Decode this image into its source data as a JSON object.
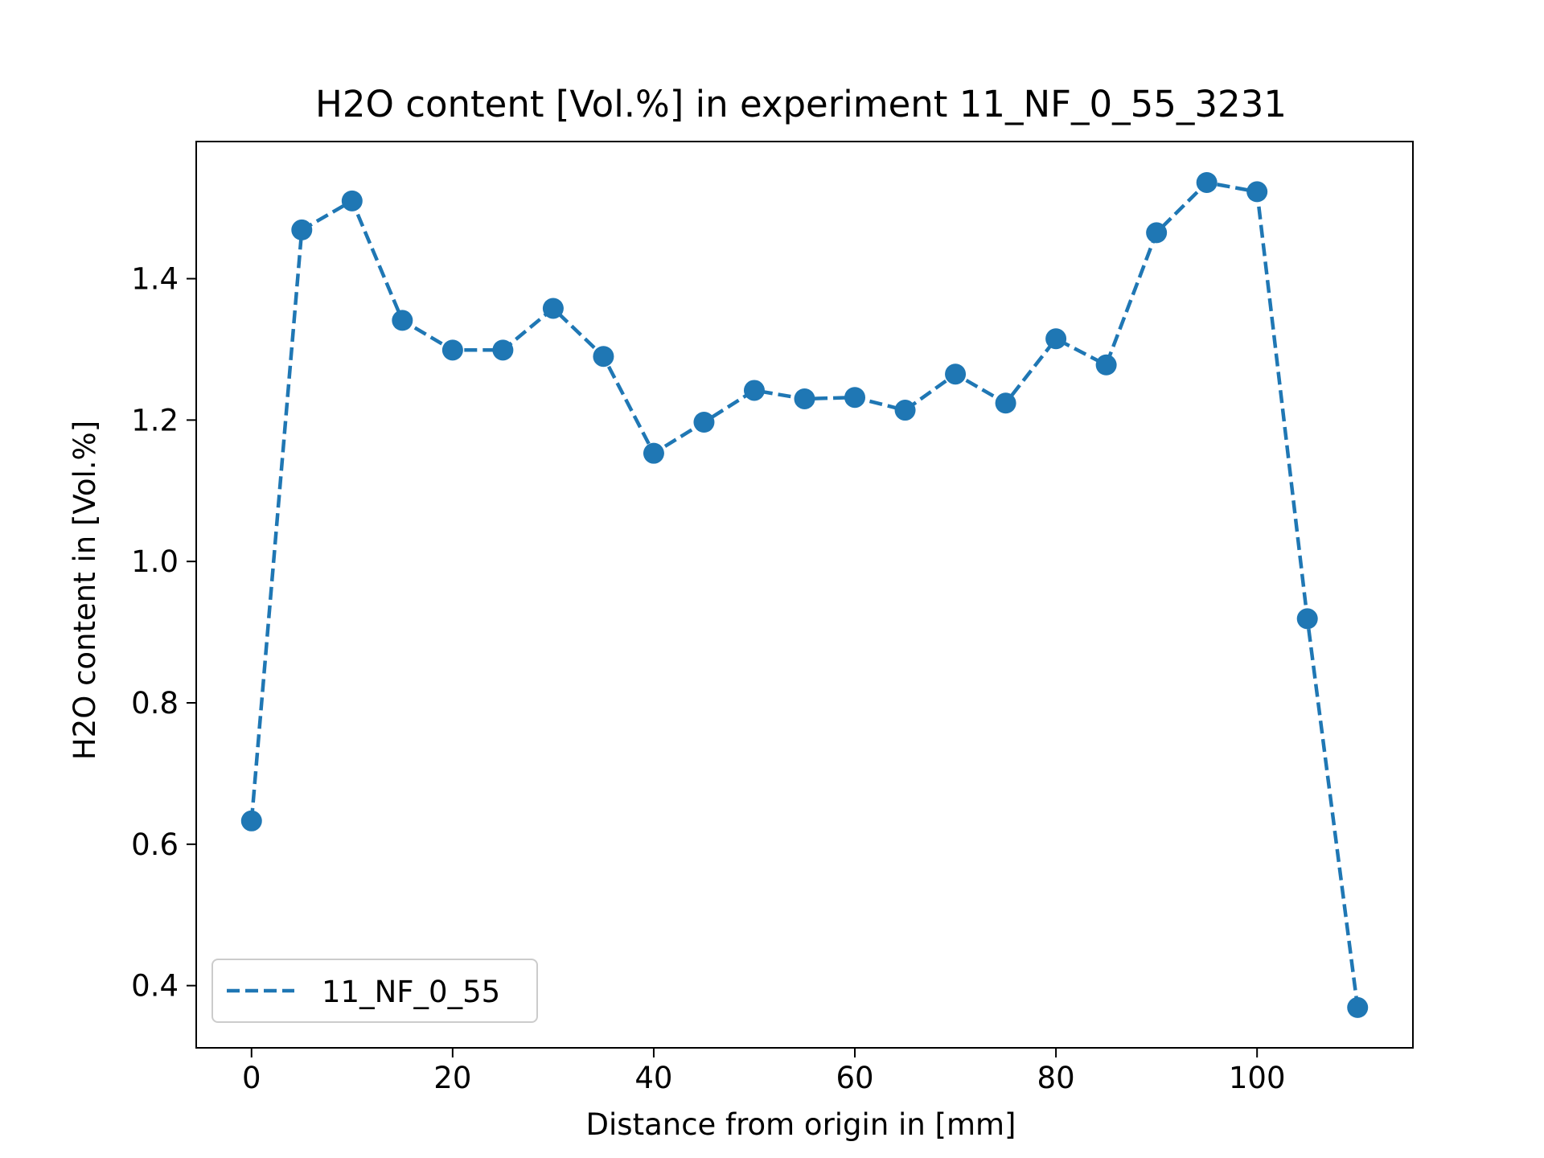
{
  "chart_data": {
    "type": "line",
    "title": "H2O content [Vol.%] in experiment 11_NF_0_55_3231",
    "xlabel": "Distance from origin in [mm]",
    "ylabel": "H2O content in [Vol.%]",
    "xlim": [
      -5.5,
      115.5
    ],
    "ylim": [
      0.312,
      1.594
    ],
    "xticks": [
      0,
      20,
      40,
      60,
      80,
      100
    ],
    "xtick_labels": [
      "0",
      "20",
      "40",
      "60",
      "80",
      "100"
    ],
    "yticks": [
      0.4,
      0.6,
      0.8,
      1.0,
      1.2,
      1.4
    ],
    "ytick_labels": [
      "0.4",
      "0.6",
      "0.8",
      "1.0",
      "1.2",
      "1.4"
    ],
    "grid": false,
    "legend_position": "lower-left",
    "series": [
      {
        "name": "11_NF_0_55",
        "color": "#1f77b4",
        "line_style": "dashed",
        "marker": "circle",
        "x": [
          0,
          5,
          10,
          15,
          20,
          25,
          30,
          35,
          40,
          45,
          50,
          55,
          60,
          65,
          70,
          75,
          80,
          85,
          90,
          95,
          100,
          105,
          110
        ],
        "y": [
          0.633,
          1.469,
          1.51,
          1.341,
          1.299,
          1.299,
          1.358,
          1.29,
          1.153,
          1.197,
          1.242,
          1.23,
          1.232,
          1.214,
          1.265,
          1.224,
          1.315,
          1.278,
          1.465,
          1.536,
          1.523,
          0.919,
          0.369
        ]
      }
    ]
  }
}
